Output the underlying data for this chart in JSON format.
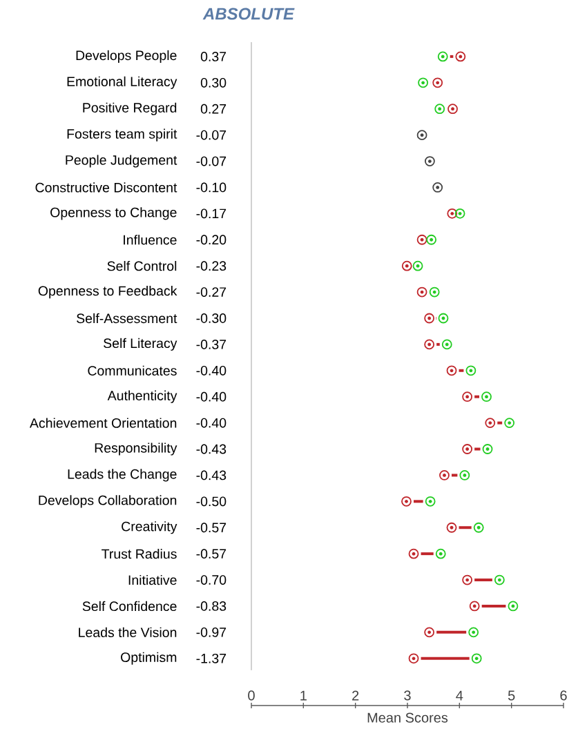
{
  "chart_data": {
    "type": "scatter",
    "title": "ABSOLUTE",
    "xlabel": "Mean Scores",
    "categories": [
      "Develops People",
      "Emotional Literacy",
      "Positive Regard",
      "Fosters team spirit",
      "People Judgement",
      "Constructive Discontent",
      "Openness to Change",
      "Influence",
      "Self Control",
      "Openness to Feedback",
      "Self-Assessment",
      "Self Literacy",
      "Communicates",
      "Authenticity",
      "Achievement Orientation",
      "Responsibility",
      "Leads the Change",
      "Develops Collaboration",
      "Creativity",
      "Trust Radius",
      "Initiative",
      "Self Confidence",
      "Leads the Vision",
      "Optimism"
    ],
    "value_labels": [
      "0.37",
      "0.30",
      "0.27",
      "-0.07",
      "-0.07",
      "-0.10",
      "-0.17",
      "-0.20",
      "-0.23",
      "-0.27",
      "-0.30",
      "-0.37",
      "-0.40",
      "-0.40",
      "-0.40",
      "-0.43",
      "-0.43",
      "-0.50",
      "-0.57",
      "-0.57",
      "-0.70",
      "-0.83",
      "-0.97",
      "-1.37"
    ],
    "series": [
      {
        "color": "#c0262b",
        "values": [
          4.02,
          3.58,
          3.87,
          null,
          null,
          null,
          3.86,
          3.28,
          2.99,
          3.28,
          3.42,
          3.42,
          3.85,
          4.15,
          4.59,
          4.15,
          3.71,
          2.98,
          3.85,
          3.12,
          4.15,
          4.29,
          3.42,
          3.12
        ]
      },
      {
        "color": "#22cc22",
        "values": [
          3.68,
          3.3,
          3.62,
          null,
          null,
          null,
          4.01,
          3.46,
          3.2,
          3.52,
          3.69,
          3.76,
          4.22,
          4.52,
          4.96,
          4.54,
          4.1,
          3.44,
          4.37,
          3.64,
          4.77,
          5.03,
          4.27,
          4.33
        ]
      },
      {
        "color": "#444444",
        "values": [
          null,
          null,
          null,
          3.28,
          3.43,
          3.58,
          null,
          null,
          null,
          null,
          null,
          null,
          null,
          null,
          null,
          null,
          null,
          null,
          null,
          null,
          null,
          null,
          null,
          null
        ]
      }
    ],
    "orientation": "horizontal",
    "xlim": [
      0,
      6
    ],
    "xticks": [
      0,
      1,
      2,
      3,
      4,
      5,
      6
    ],
    "marker": "circle"
  }
}
